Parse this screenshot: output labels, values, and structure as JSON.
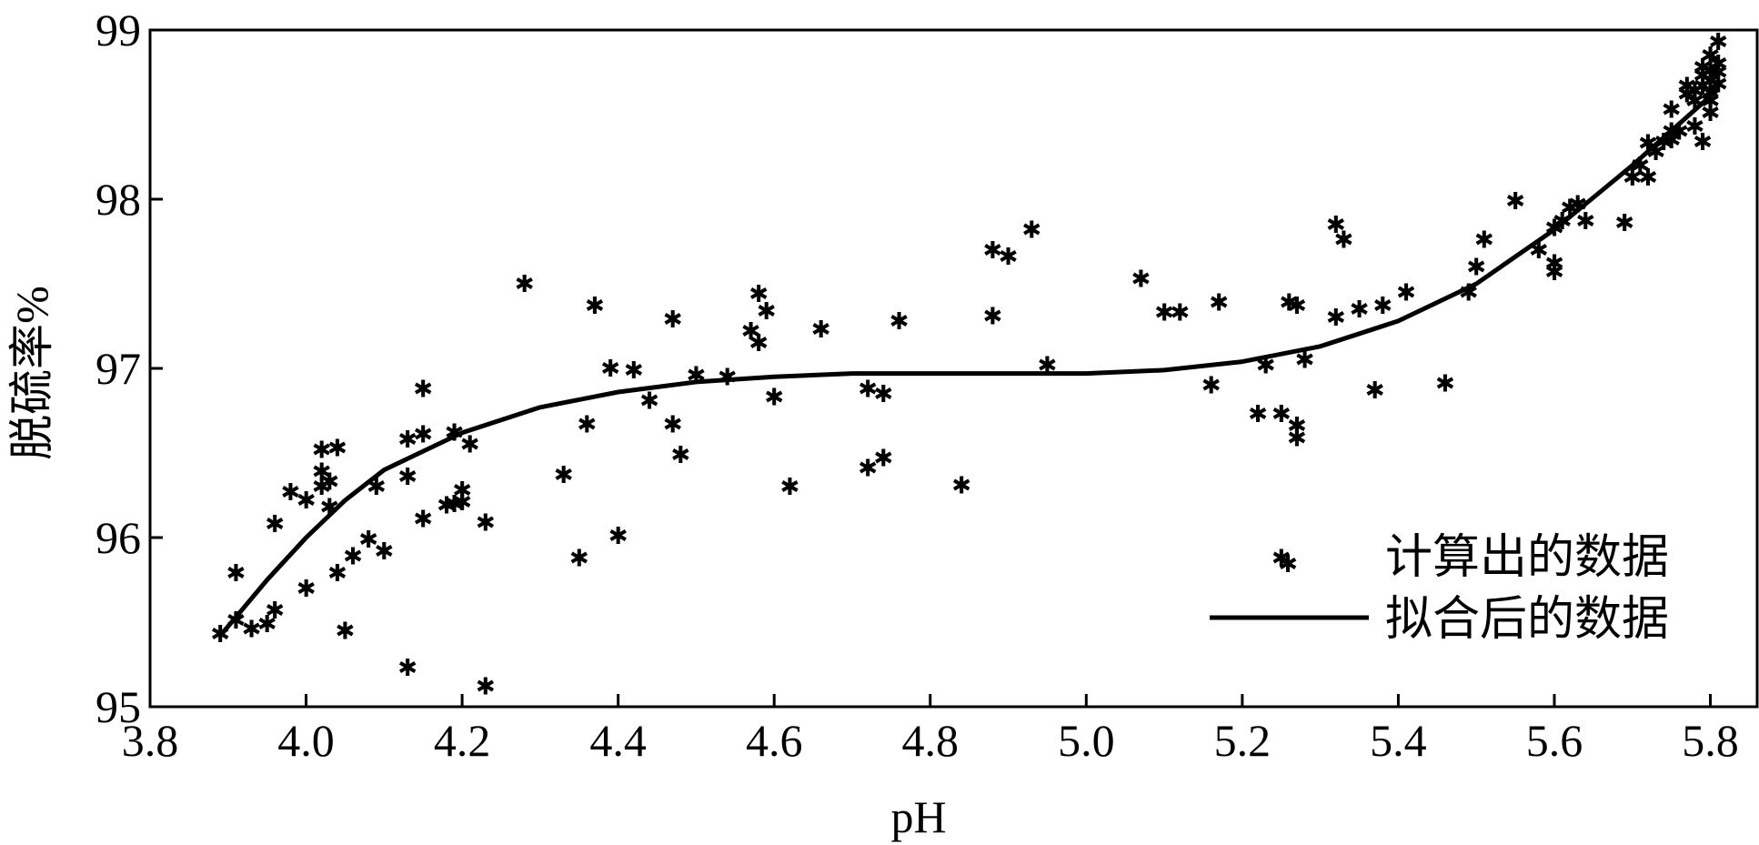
{
  "chart_data": {
    "type": "scatter",
    "xlabel": "pH",
    "ylabel": "脱硫率%",
    "xlim": [
      3.8,
      5.86
    ],
    "ylim": [
      95,
      99
    ],
    "xticks": [
      "3.8",
      "4.0",
      "4.2",
      "4.4",
      "4.6",
      "4.8",
      "5.0",
      "5.2",
      "5.4",
      "5.6",
      "5.8"
    ],
    "yticks": [
      "95",
      "96",
      "97",
      "98",
      "99"
    ],
    "legend_position": "bottom-right",
    "series": [
      {
        "name": "计算出的数据",
        "kind": "scatter",
        "points": [
          [
            3.89,
            95.43
          ],
          [
            3.91,
            95.51
          ],
          [
            3.91,
            95.79
          ],
          [
            3.93,
            95.46
          ],
          [
            3.95,
            95.49
          ],
          [
            3.96,
            95.57
          ],
          [
            3.96,
            96.08
          ],
          [
            3.98,
            96.27
          ],
          [
            4.0,
            95.7
          ],
          [
            4.0,
            96.22
          ],
          [
            4.02,
            96.52
          ],
          [
            4.02,
            96.39
          ],
          [
            4.02,
            96.3
          ],
          [
            4.03,
            96.33
          ],
          [
            4.03,
            96.18
          ],
          [
            4.04,
            96.53
          ],
          [
            4.04,
            95.79
          ],
          [
            4.05,
            95.45
          ],
          [
            4.06,
            95.89
          ],
          [
            4.08,
            95.99
          ],
          [
            4.09,
            96.3
          ],
          [
            4.1,
            95.92
          ],
          [
            4.13,
            96.58
          ],
          [
            4.13,
            95.23
          ],
          [
            4.13,
            96.36
          ],
          [
            4.15,
            96.88
          ],
          [
            4.15,
            96.61
          ],
          [
            4.15,
            96.11
          ],
          [
            4.18,
            96.19
          ],
          [
            4.19,
            96.62
          ],
          [
            4.19,
            96.2
          ],
          [
            4.2,
            96.28
          ],
          [
            4.2,
            96.21
          ],
          [
            4.21,
            96.55
          ],
          [
            4.23,
            95.12
          ],
          [
            4.23,
            96.09
          ],
          [
            4.28,
            97.5
          ],
          [
            4.33,
            96.37
          ],
          [
            4.35,
            95.88
          ],
          [
            4.36,
            96.67
          ],
          [
            4.37,
            97.37
          ],
          [
            4.39,
            97.0
          ],
          [
            4.4,
            96.01
          ],
          [
            4.42,
            96.99
          ],
          [
            4.44,
            96.81
          ],
          [
            4.47,
            96.67
          ],
          [
            4.47,
            97.29
          ],
          [
            4.48,
            96.49
          ],
          [
            4.5,
            96.96
          ],
          [
            4.54,
            96.95
          ],
          [
            4.57,
            97.22
          ],
          [
            4.58,
            97.44
          ],
          [
            4.58,
            97.15
          ],
          [
            4.59,
            97.34
          ],
          [
            4.6,
            96.83
          ],
          [
            4.62,
            96.3
          ],
          [
            4.66,
            97.23
          ],
          [
            4.72,
            96.88
          ],
          [
            4.72,
            96.41
          ],
          [
            4.74,
            96.85
          ],
          [
            4.74,
            96.47
          ],
          [
            4.76,
            97.28
          ],
          [
            4.84,
            96.31
          ],
          [
            4.88,
            97.7
          ],
          [
            4.88,
            97.31
          ],
          [
            4.9,
            97.66
          ],
          [
            4.93,
            97.82
          ],
          [
            4.95,
            97.02
          ],
          [
            5.07,
            97.53
          ],
          [
            5.1,
            97.33
          ],
          [
            5.12,
            97.33
          ],
          [
            5.16,
            96.9
          ],
          [
            5.17,
            97.39
          ],
          [
            5.22,
            96.73
          ],
          [
            5.23,
            97.02
          ],
          [
            5.25,
            96.73
          ],
          [
            5.25,
            95.88
          ],
          [
            5.26,
            97.39
          ],
          [
            5.27,
            97.37
          ],
          [
            5.27,
            96.66
          ],
          [
            5.27,
            96.59
          ],
          [
            5.28,
            97.05
          ],
          [
            5.32,
            97.85
          ],
          [
            5.32,
            97.3
          ],
          [
            5.33,
            97.76
          ],
          [
            5.35,
            97.35
          ],
          [
            5.37,
            96.87
          ],
          [
            5.38,
            97.37
          ],
          [
            5.41,
            97.45
          ],
          [
            5.46,
            96.91
          ],
          [
            5.49,
            97.45
          ],
          [
            5.5,
            97.6
          ],
          [
            5.51,
            97.76
          ],
          [
            5.55,
            97.99
          ],
          [
            5.58,
            97.7
          ],
          [
            5.6,
            97.57
          ],
          [
            5.6,
            97.62
          ],
          [
            5.6,
            97.83
          ],
          [
            5.61,
            97.87
          ],
          [
            5.62,
            97.95
          ],
          [
            5.63,
            97.97
          ],
          [
            5.64,
            97.87
          ],
          [
            5.69,
            97.86
          ],
          [
            5.7,
            98.13
          ],
          [
            5.71,
            98.2
          ],
          [
            5.72,
            98.13
          ],
          [
            5.72,
            98.33
          ],
          [
            5.73,
            98.28
          ],
          [
            5.74,
            98.34
          ],
          [
            5.75,
            98.4
          ],
          [
            5.75,
            98.35
          ],
          [
            5.75,
            98.53
          ],
          [
            5.76,
            98.4
          ],
          [
            5.77,
            98.62
          ],
          [
            5.77,
            98.67
          ],
          [
            5.78,
            98.58
          ],
          [
            5.78,
            98.64
          ],
          [
            5.78,
            98.43
          ],
          [
            5.79,
            98.73
          ],
          [
            5.79,
            98.67
          ],
          [
            5.79,
            98.34
          ],
          [
            5.79,
            98.78
          ],
          [
            5.8,
            98.58
          ],
          [
            5.8,
            98.63
          ],
          [
            5.8,
            98.76
          ],
          [
            5.8,
            98.85
          ],
          [
            5.8,
            98.7
          ],
          [
            5.8,
            98.51
          ],
          [
            5.81,
            98.93
          ],
          [
            5.81,
            98.75
          ],
          [
            5.81,
            98.8
          ],
          [
            5.81,
            98.68
          ]
        ]
      },
      {
        "name": "拟合后的数据",
        "kind": "line",
        "points": [
          [
            3.89,
            95.42
          ],
          [
            3.95,
            95.75
          ],
          [
            4.0,
            96.0
          ],
          [
            4.05,
            96.22
          ],
          [
            4.1,
            96.4
          ],
          [
            4.2,
            96.62
          ],
          [
            4.3,
            96.77
          ],
          [
            4.4,
            96.86
          ],
          [
            4.5,
            96.92
          ],
          [
            4.6,
            96.95
          ],
          [
            4.7,
            96.97
          ],
          [
            4.8,
            96.97
          ],
          [
            4.9,
            96.97
          ],
          [
            5.0,
            96.97
          ],
          [
            5.1,
            96.99
          ],
          [
            5.2,
            97.04
          ],
          [
            5.3,
            97.13
          ],
          [
            5.4,
            97.28
          ],
          [
            5.5,
            97.5
          ],
          [
            5.6,
            97.82
          ],
          [
            5.7,
            98.2
          ],
          [
            5.81,
            98.65
          ]
        ]
      }
    ]
  }
}
